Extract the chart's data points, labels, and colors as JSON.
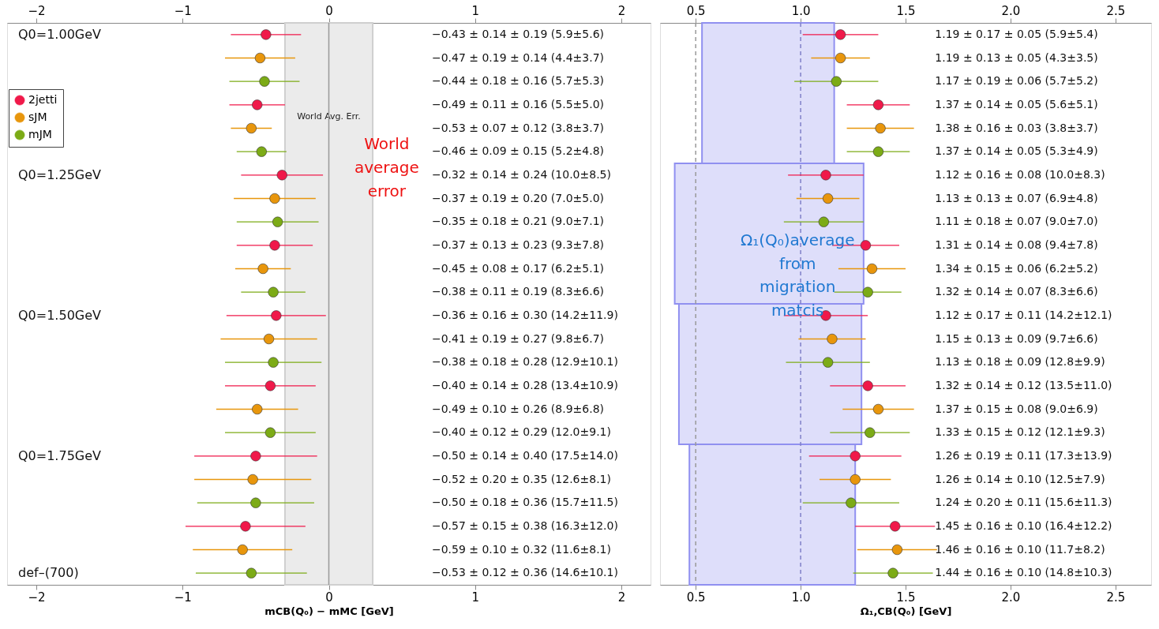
{
  "chart_data": [
    {
      "type": "scatter",
      "orientation": "horizontal",
      "xlabel": "mCB(Q₀) − mMC [GeV]",
      "legend": "top left",
      "categories": [
        null,
        null,
        null,
        null,
        null,
        null,
        null,
        null,
        null,
        null,
        null,
        null,
        null,
        null,
        null,
        null,
        null,
        null,
        null,
        null,
        null,
        null,
        null,
        null
      ],
      "xlim": [
        -2.2,
        2.2
      ],
      "xticks": [
        -2,
        -1,
        0,
        1,
        2
      ],
      "x2lim": [
        -2.2,
        2.2
      ],
      "x2ticks": [
        -2,
        -1,
        0,
        1,
        2
      ],
      "bands": [
        {
          "axis": "x",
          "from": -0.3,
          "to": 0.3,
          "label": "World Avg. Err.",
          "color": "#ebebeb"
        }
      ],
      "ref_lines": [
        {
          "axis": "x",
          "value": 0,
          "color": "#999999",
          "line_style": "solid"
        }
      ],
      "annotations": [
        "Q0=1.00GeV",
        "Q0=1.25GeV",
        "Q0=1.50GeV",
        "Q0=1.75GeV",
        "def–(700)",
        "World average error",
        "−0.43 ± 0.14 ± 0.19  (5.9±5.6)",
        "−0.47 ± 0.19 ± 0.14  (4.4±3.7)",
        "−0.44 ± 0.18 ± 0.16  (5.7±5.3)",
        "−0.49 ± 0.11 ± 0.16  (5.5±5.0)",
        "−0.53 ± 0.07 ± 0.12  (3.8±3.7)",
        "−0.46 ± 0.09 ± 0.15  (5.2±4.8)",
        "−0.32 ± 0.14 ± 0.24  (10.0±8.5)",
        "−0.37 ± 0.19 ± 0.20  (7.0±5.0)",
        "−0.35 ± 0.18 ± 0.21  (9.0±7.1)",
        "−0.37 ± 0.13 ± 0.23  (9.3±7.8)",
        "−0.45 ± 0.08 ± 0.17  (6.2±5.1)",
        "−0.38 ± 0.11 ± 0.19  (8.3±6.6)",
        "−0.36 ± 0.16 ± 0.30  (14.2±11.9)",
        "−0.41 ± 0.19 ± 0.27  (9.8±6.7)",
        "−0.38 ± 0.18 ± 0.28  (12.9±10.1)",
        "−0.40 ± 0.14 ± 0.28  (13.4±10.9)",
        "−0.49 ± 0.10 ± 0.26  (8.9±6.8)",
        "−0.40 ± 0.12 ± 0.29  (12.0±9.1)",
        "−0.50 ± 0.14 ± 0.40  (17.5±14.0)",
        "−0.52 ± 0.20 ± 0.35  (12.6±8.1)",
        "−0.50 ± 0.18 ± 0.36  (15.7±11.5)",
        "−0.57 ± 0.15 ± 0.38  (16.3±12.0)",
        "−0.59 ± 0.10 ± 0.32  (11.6±8.1)",
        "−0.53 ± 0.12 ± 0.36  (14.6±10.1)"
      ],
      "series": [
        {
          "name": "2jetti",
          "color": "#f0194a",
          "values": [
            -0.43,
            null,
            null,
            -0.49,
            null,
            null,
            -0.32,
            null,
            null,
            -0.37,
            null,
            null,
            -0.36,
            null,
            null,
            -0.4,
            null,
            null,
            -0.5,
            null,
            null,
            -0.57,
            null,
            null
          ],
          "errors": [
            0.24,
            null,
            null,
            0.19,
            null,
            null,
            0.28,
            null,
            null,
            0.26,
            null,
            null,
            0.34,
            null,
            null,
            0.31,
            null,
            null,
            0.42,
            null,
            null,
            0.41,
            null,
            null
          ]
        },
        {
          "name": "sJM",
          "color": "#e8960c",
          "values": [
            null,
            -0.47,
            null,
            null,
            -0.53,
            null,
            null,
            -0.37,
            null,
            null,
            -0.45,
            null,
            null,
            -0.41,
            null,
            null,
            -0.49,
            null,
            null,
            -0.52,
            null,
            null,
            -0.59,
            null
          ],
          "errors": [
            null,
            0.24,
            null,
            null,
            0.14,
            null,
            null,
            0.28,
            null,
            null,
            0.19,
            null,
            null,
            0.33,
            null,
            null,
            0.28,
            null,
            null,
            0.4,
            null,
            null,
            0.34,
            null
          ]
        },
        {
          "name": "mJM",
          "color": "#7cab16",
          "values": [
            null,
            null,
            -0.44,
            null,
            null,
            -0.46,
            null,
            null,
            -0.35,
            null,
            null,
            -0.38,
            null,
            null,
            -0.38,
            null,
            null,
            -0.4,
            null,
            null,
            -0.5,
            null,
            null,
            -0.53
          ],
          "errors": [
            null,
            null,
            0.24,
            null,
            null,
            0.17,
            null,
            null,
            0.28,
            null,
            null,
            0.22,
            null,
            null,
            0.33,
            null,
            null,
            0.31,
            null,
            null,
            0.4,
            null,
            null,
            0.38
          ]
        }
      ]
    },
    {
      "type": "scatter",
      "orientation": "horizontal",
      "xlabel": "Ω₁,CB(Q₀) [GeV]",
      "categories": [
        null,
        null,
        null,
        null,
        null,
        null,
        null,
        null,
        null,
        null,
        null,
        null,
        null,
        null,
        null,
        null,
        null,
        null,
        null,
        null,
        null,
        null,
        null,
        null
      ],
      "xlim": [
        0.33,
        2.67
      ],
      "xticks": [
        0.5,
        {
          "value": 1,
          "label": "1.0"
        },
        1.5,
        {
          "value": 2,
          "label": "2.0"
        },
        2.5
      ],
      "x2lim": [
        0.33,
        2.67
      ],
      "x2ticks": [
        0.5,
        {
          "value": 1,
          "label": "1.0"
        },
        1.5,
        {
          "value": 2,
          "label": "2.0"
        },
        2.5
      ],
      "bands": [
        {
          "axis": "x",
          "from": 0.53,
          "to": 1.16,
          "color": "#dedefa"
        },
        {
          "axis": "x",
          "from": 0.4,
          "to": 1.3,
          "color": "#dedefa"
        },
        {
          "axis": "x",
          "from": 0.42,
          "to": 1.29,
          "color": "#dedefa"
        },
        {
          "axis": "x",
          "from": 0.47,
          "to": 1.26,
          "color": "#dedefa"
        }
      ],
      "ref_lines": [
        {
          "axis": "x",
          "value": 0.5,
          "color": "#999999",
          "line_style": "dashed"
        },
        {
          "axis": "x",
          "value": 1.0,
          "color": "#8080c8",
          "line_style": "dashed"
        }
      ],
      "annotations": [
        "Ω₁(Q₀)average from migration matcis",
        "1.19 ± 0.17 ± 0.05  (5.9±5.4)",
        "1.19 ± 0.13 ± 0.05  (4.3±3.5)",
        "1.17 ± 0.19 ± 0.06  (5.7±5.2)",
        "1.37 ± 0.14 ± 0.05  (5.6±5.1)",
        "1.38 ± 0.16 ± 0.03  (3.8±3.7)",
        "1.37 ± 0.14 ± 0.05  (5.3±4.9)",
        "1.12 ± 0.16 ± 0.08  (10.0±8.3)",
        "1.13 ± 0.13 ± 0.07  (6.9±4.8)",
        "1.11 ± 0.18 ± 0.07  (9.0±7.0)",
        "1.31 ± 0.14 ± 0.08  (9.4±7.8)",
        "1.34 ± 0.15 ± 0.06  (6.2±5.2)",
        "1.32 ± 0.14 ± 0.07  (8.3±6.6)",
        "1.12 ± 0.17 ± 0.11  (14.2±12.1)",
        "1.15 ± 0.13 ± 0.09  (9.7±6.6)",
        "1.13 ± 0.18 ± 0.09  (12.8±9.9)",
        "1.32 ± 0.14 ± 0.12  (13.5±11.0)",
        "1.37 ± 0.15 ± 0.08  (9.0±6.9)",
        "1.33 ± 0.15 ± 0.12  (12.1±9.3)",
        "1.26 ± 0.19 ± 0.11  (17.3±13.9)",
        "1.26 ± 0.14 ± 0.10  (12.5±7.9)",
        "1.24 ± 0.20 ± 0.11  (15.6±11.3)",
        "1.45 ± 0.16 ± 0.10  (16.4±12.2)",
        "1.46 ± 0.16 ± 0.10  (11.7±8.2)",
        "1.44 ± 0.16 ± 0.10  (14.8±10.3)"
      ],
      "series": [
        {
          "color": "#f0194a",
          "values": [
            1.19,
            null,
            null,
            1.37,
            null,
            null,
            1.12,
            null,
            null,
            1.31,
            null,
            null,
            1.12,
            null,
            null,
            1.32,
            null,
            null,
            1.26,
            null,
            null,
            1.45,
            null,
            null
          ],
          "errors": [
            0.18,
            null,
            null,
            0.15,
            null,
            null,
            0.18,
            null,
            null,
            0.16,
            null,
            null,
            0.2,
            null,
            null,
            0.18,
            null,
            null,
            0.22,
            null,
            null,
            0.19,
            null,
            null
          ]
        },
        {
          "color": "#e8960c",
          "values": [
            null,
            1.19,
            null,
            null,
            1.38,
            null,
            null,
            1.13,
            null,
            null,
            1.34,
            null,
            null,
            1.15,
            null,
            null,
            1.37,
            null,
            null,
            1.26,
            null,
            null,
            1.46,
            null
          ],
          "errors": [
            null,
            0.14,
            null,
            null,
            0.16,
            null,
            null,
            0.15,
            null,
            null,
            0.16,
            null,
            null,
            0.16,
            null,
            null,
            0.17,
            null,
            null,
            0.17,
            null,
            null,
            0.19,
            null
          ]
        },
        {
          "color": "#7cab16",
          "values": [
            null,
            null,
            1.17,
            null,
            null,
            1.37,
            null,
            null,
            1.11,
            null,
            null,
            1.32,
            null,
            null,
            1.13,
            null,
            null,
            1.33,
            null,
            null,
            1.24,
            null,
            null,
            1.44
          ],
          "errors": [
            null,
            null,
            0.2,
            null,
            null,
            0.15,
            null,
            null,
            0.19,
            null,
            null,
            0.16,
            null,
            null,
            0.2,
            null,
            null,
            0.19,
            null,
            null,
            0.23,
            null,
            null,
            0.19
          ]
        }
      ]
    }
  ]
}
